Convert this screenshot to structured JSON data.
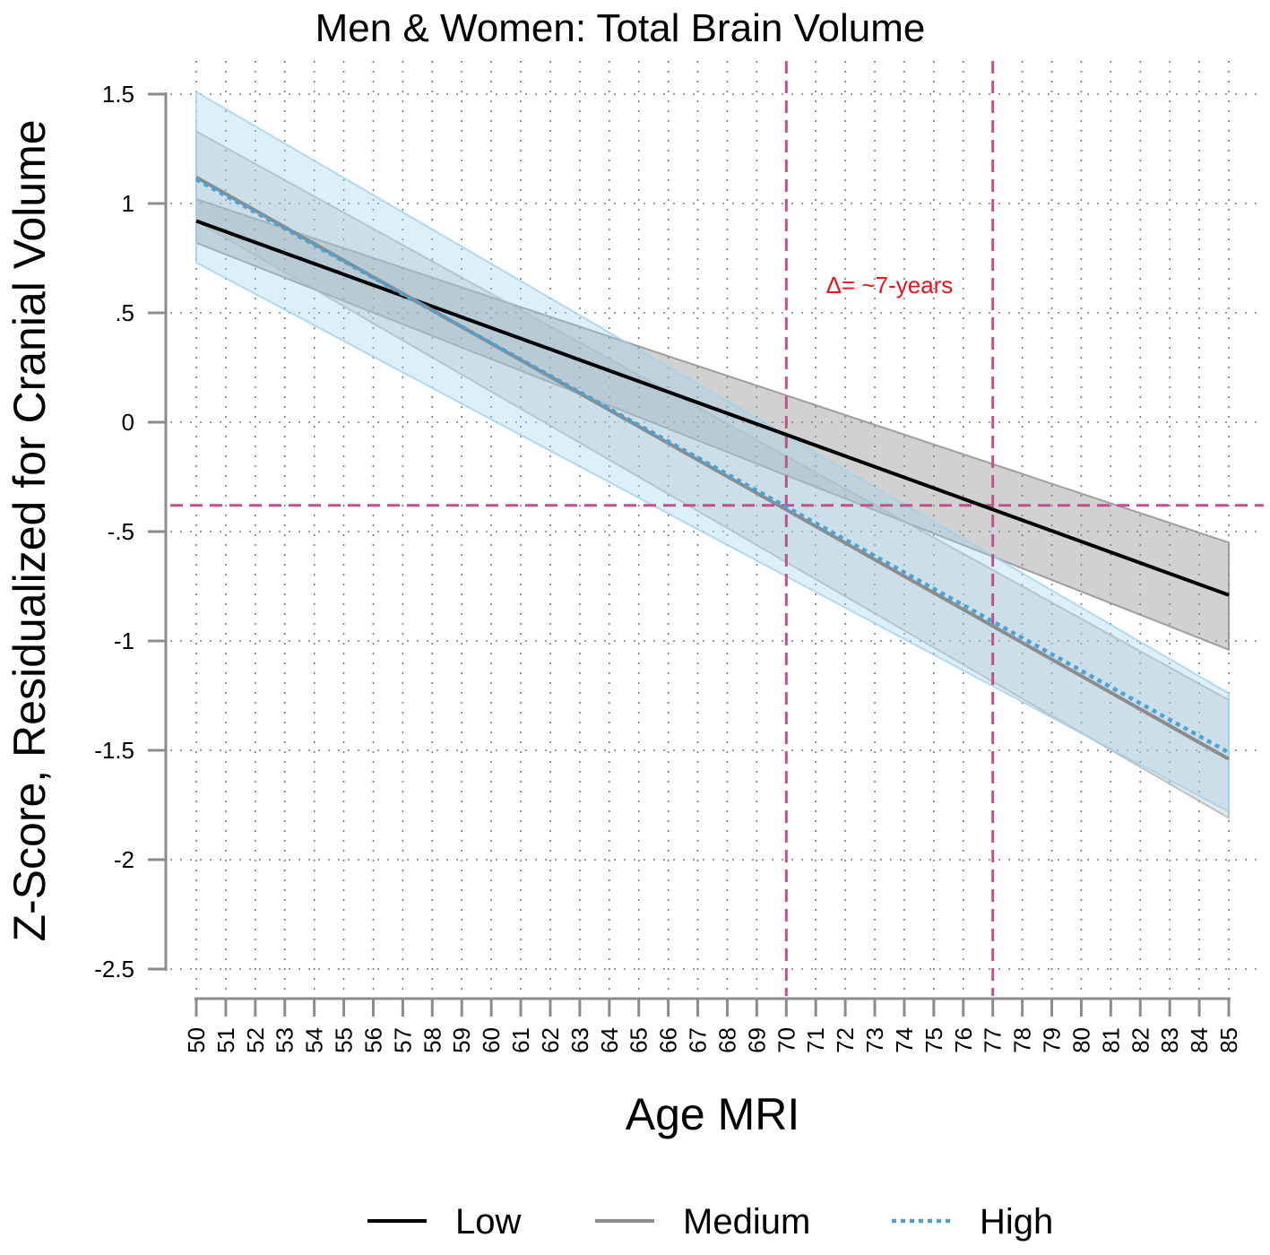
{
  "chart_data": {
    "type": "line",
    "title": "Men & Women: Total Brain Volume",
    "xlabel": "Age MRI",
    "ylabel": "Z-Score, Residualized for Cranial Volume",
    "xlim": [
      50,
      85
    ],
    "ylim": [
      -2.5,
      1.5
    ],
    "x_ticks": [
      50,
      51,
      52,
      53,
      54,
      55,
      56,
      57,
      58,
      59,
      60,
      61,
      62,
      63,
      64,
      65,
      66,
      67,
      68,
      69,
      70,
      71,
      72,
      73,
      74,
      75,
      76,
      77,
      78,
      79,
      80,
      81,
      82,
      83,
      84,
      85
    ],
    "y_ticks": [
      {
        "value": 1.5,
        "label": "1.5"
      },
      {
        "value": 1,
        "label": "1"
      },
      {
        "value": 0.5,
        "label": ".5"
      },
      {
        "value": 0,
        "label": "0"
      },
      {
        "value": -0.5,
        "label": "-.5"
      },
      {
        "value": -1,
        "label": "-1"
      },
      {
        "value": -1.5,
        "label": "-1.5"
      },
      {
        "value": -2,
        "label": "-2"
      },
      {
        "value": -2.5,
        "label": "-2.5"
      }
    ],
    "grid": true,
    "series": [
      {
        "name": "Low",
        "color": "#000000",
        "style": "solid",
        "x": [
          50,
          85
        ],
        "y": [
          0.92,
          -0.79
        ],
        "ci_lower": [
          0.82,
          -1.04
        ],
        "ci_upper": [
          1.02,
          -0.55
        ],
        "ci_fill": "#8c8c8c",
        "ci_opacity": 0.4
      },
      {
        "name": "Medium",
        "color": "#8c8c8c",
        "style": "solid",
        "x": [
          50,
          85
        ],
        "y": [
          1.12,
          -1.54
        ],
        "ci_lower": [
          0.92,
          -1.81
        ],
        "ci_upper": [
          1.33,
          -1.27
        ],
        "ci_fill": "#b4b4b4",
        "ci_opacity": 0.35
      },
      {
        "name": "High",
        "color": "#4aa3d8",
        "style": "dotted",
        "x": [
          50,
          85
        ],
        "y": [
          1.11,
          -1.51
        ],
        "ci_lower": [
          0.73,
          -1.78
        ],
        "ci_upper": [
          1.51,
          -1.24
        ],
        "ci_fill": "#9fd2ef",
        "ci_opacity": 0.35
      }
    ],
    "reference_lines": [
      {
        "orientation": "vertical",
        "value": 70,
        "color": "#c0508e"
      },
      {
        "orientation": "vertical",
        "value": 77,
        "color": "#c0508e"
      },
      {
        "orientation": "horizontal",
        "value": -0.38,
        "color": "#c0508e"
      }
    ],
    "annotations": [
      {
        "text": "Δ= ~7-years",
        "x": 73.5,
        "y": 0.59,
        "color": "#e8141a"
      }
    ],
    "legend": {
      "position": "bottom",
      "entries": [
        "Low",
        "Medium",
        "High"
      ]
    }
  }
}
